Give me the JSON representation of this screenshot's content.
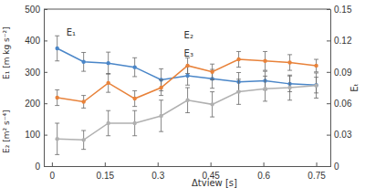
{
  "chart_data": {
    "type": "line",
    "xlabel": "Δtview [s]",
    "ylabels": [
      "E₁ [m kg s⁻²]",
      "E₂ [m² s⁻⁴]"
    ],
    "y2label": "Eₜ",
    "x": [
      0.015,
      0.09,
      0.16,
      0.235,
      0.31,
      0.385,
      0.455,
      0.53,
      0.605,
      0.675,
      0.75
    ],
    "xlim": [
      -0.023,
      0.79
    ],
    "xticks": [
      0,
      0.15,
      0.3,
      0.45,
      0.6,
      0.75
    ],
    "ylim": [
      0,
      500
    ],
    "yticks": [
      0,
      100,
      200,
      300,
      400,
      500
    ],
    "y2lim": [
      0,
      0.15
    ],
    "y2ticks": [
      0,
      0.03,
      0.06,
      0.09,
      0.12,
      0.15
    ],
    "marker": "circle",
    "grid": false,
    "series": [
      {
        "name": "E₁",
        "color": "#4a86c8",
        "axis": "y",
        "values": [
          375,
          332,
          328,
          315,
          275,
          288,
          278,
          268,
          272,
          262,
          258
        ],
        "errors": [
          40,
          30,
          35,
          30,
          35,
          30,
          30,
          30,
          30,
          25,
          25
        ]
      },
      {
        "name": "E₂",
        "color": "#e8823a",
        "axis": "y",
        "values": [
          218,
          205,
          265,
          215,
          250,
          320,
          300,
          340,
          335,
          330,
          320
        ],
        "errors": [
          25,
          20,
          30,
          25,
          25,
          25,
          25,
          25,
          30,
          25,
          20
        ]
      },
      {
        "name": "E₃",
        "color": "#b0b0b0",
        "axis": "y2",
        "values": [
          0.026,
          0.025,
          0.041,
          0.041,
          0.048,
          0.063,
          0.059,
          0.071,
          0.074,
          0.075,
          0.077
        ],
        "errors": [
          0.015,
          0.009,
          0.012,
          0.012,
          0.015,
          0.012,
          0.012,
          0.012,
          0.012,
          0.012,
          0.012
        ]
      }
    ]
  }
}
